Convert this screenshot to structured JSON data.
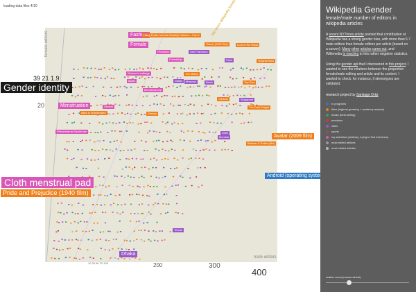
{
  "status": "loading data files 4/10",
  "axes": {
    "y_title": "female editors",
    "x_title": "male editors",
    "x_ticks": {
      "t400": "400",
      "t300": "300",
      "t200": "200",
      "small": "10 30 50 70 100"
    },
    "y_ticks": {
      "t20": "20",
      "top": "39 21 1.9"
    }
  },
  "annotation": "200 times Wikipedia female/male average",
  "labels": [
    {
      "id": "fashion",
      "text": "Fashion",
      "size": "md",
      "color": "#d957b8"
    },
    {
      "id": "harry-potter",
      "text": "Harry Potter and the Deathly Hallows – Part 1",
      "size": "sm",
      "color": "#f07f1b"
    },
    {
      "id": "female",
      "text": "Female",
      "size": "md",
      "color": "#d957b8"
    },
    {
      "id": "titanic",
      "text": "Titanic (1997 film)",
      "size": "sm",
      "color": "#f07f1b"
    },
    {
      "id": "ring",
      "text": "Lord of the Rings",
      "size": "sm",
      "color": "#f07f1b"
    },
    {
      "id": "feminism",
      "text": "Feminism",
      "size": "sm",
      "color": "#d957b8"
    },
    {
      "id": "sanfrancisco",
      "text": "San Francisco",
      "size": "sm",
      "color": "#9a59c9"
    },
    {
      "id": "friendship",
      "text": "Friendship",
      "size": "sm",
      "color": "#d957b8"
    },
    {
      "id": "paris",
      "text": "Paris",
      "size": "sm",
      "color": "#9a59c9"
    },
    {
      "id": "original",
      "text": "Original films",
      "size": "sm",
      "color": "#f07f1b"
    },
    {
      "id": "suffrage",
      "text": "Women's suffrage",
      "size": "sm",
      "color": "#d957b8"
    },
    {
      "id": "matrix",
      "text": "The Matrix",
      "size": "sm",
      "color": "#f07f1b"
    },
    {
      "id": "ballet",
      "text": "Ballet",
      "size": "sm",
      "color": "#d957b8"
    },
    {
      "id": "dallas",
      "text": "Dallas",
      "size": "sm",
      "color": "#9a59c9"
    },
    {
      "id": "moscow",
      "text": "Moscow",
      "size": "sm",
      "color": "#9a59c9"
    },
    {
      "id": "berlin",
      "text": "Berlin",
      "size": "sm",
      "color": "#9a59c9"
    },
    {
      "id": "topgun",
      "text": "Top Gun",
      "size": "sm",
      "color": "#f07f1b"
    },
    {
      "id": "menstrual-cup",
      "text": "Menstrual cup",
      "size": "sm",
      "color": "#d957b8"
    },
    {
      "id": "gender-identity",
      "text": "Gender identity",
      "size": "lg",
      "color": "#1a1a1a"
    },
    {
      "id": "cartoon",
      "text": "Cartoon",
      "size": "sm",
      "color": "#f07f1b"
    },
    {
      "id": "singapore",
      "text": "Singapore",
      "size": "sm",
      "color": "#9a59c9"
    },
    {
      "id": "darkknight",
      "text": "The Dark Knight",
      "size": "sm",
      "color": "#f07f1b"
    },
    {
      "id": "menstruation",
      "text": "Menstruation",
      "size": "md",
      "color": "#d957b8"
    },
    {
      "id": "feminism2",
      "text": "Sexism",
      "size": "sm",
      "color": "#d957b8"
    },
    {
      "id": "alice",
      "text": "Alice in Wonderland",
      "size": "sm",
      "color": "#f07f1b"
    },
    {
      "id": "grease",
      "text": "Grease",
      "size": "sm",
      "color": "#f07f1b"
    },
    {
      "id": "avatar",
      "text": "Avatar (2009 film)",
      "size": "md",
      "color": "#f07f1b"
    },
    {
      "id": "premenstrual",
      "text": "Premenstrual Syndrome",
      "size": "sm",
      "color": "#d957b8"
    },
    {
      "id": "delhi",
      "text": "Delhi",
      "size": "sm",
      "color": "#9a59c9"
    },
    {
      "id": "mumbai",
      "text": "Mumbai",
      "size": "sm",
      "color": "#9a59c9"
    },
    {
      "id": "batman",
      "text": "Batman & Robin (film)",
      "size": "sm",
      "color": "#f07f1b"
    },
    {
      "id": "android",
      "text": "Android (operating system)",
      "size": "md",
      "color": "#2f7ac3"
    },
    {
      "id": "cloth-pad",
      "text": "Cloth menstrual pad",
      "size": "lg",
      "color": "#d957b8"
    },
    {
      "id": "pride",
      "text": "Pride and Prejudice (1940 film)",
      "size": "mdlg",
      "color": "#f07f1b"
    },
    {
      "id": "tehran",
      "text": "Tehran",
      "size": "sm",
      "color": "#9a59c9"
    },
    {
      "id": "dhaka",
      "text": "Dhaka",
      "size": "md",
      "color": "#9a59c9"
    }
  ],
  "sidebar": {
    "title": "Wikipedia Gender",
    "subtitle": "female/male number of editors in wikipedia articles",
    "p1": {
      "before_link1": "A ",
      "link1": "recent NYTimes article",
      "after_link1": " pointed that contribution at Wikipedia has a strong gender bias, with more than 6.7 male editors than female editors per article (based on a survey). ",
      "link2": "Many",
      "mid1": " ",
      "link3": "other",
      "mid2": " ",
      "link4": "articles",
      "mid3": " ",
      "link5": "came out",
      "mid4": ", and Wikimedia ",
      "link6": "is reacting",
      "after": " to this rather negative statistics."
    },
    "p2": {
      "before": "Using the ",
      "link1": "gender api",
      "mid": " that I discovered in ",
      "link2": "this project",
      "after": ", I wanted to see the relations between the proportion female/male editing and article and its content. I wanted to check, for instance, if stereotypes are validated."
    },
    "credit": {
      "before": "research project by ",
      "link": "Santiago Ortiz"
    },
    "legend": [
      {
        "label": "tv programs",
        "color": "#2f7ac3"
      },
      {
        "label": "films (highest grossing + academy awards)",
        "color": "#f07f1b"
      },
      {
        "label": "books (best selling)",
        "color": "#3aa34a"
      },
      {
        "label": "emotions",
        "color": "#d9342b"
      },
      {
        "label": "cities",
        "color": "#9a59c9"
      },
      {
        "label": "sports",
        "color": "#8b5a3c"
      },
      {
        "label": "my selection (arbitrary, trying to find extremes)",
        "color": "#d957b8"
      },
      {
        "label": "most edited articles",
        "color": "#9a9a9a"
      },
      {
        "label": "most visited articles",
        "color": "#b8b8b8"
      }
    ],
    "zoom_label": "scatter zoom (mouse wheel)",
    "zoom_level": 0.28
  },
  "palette": {
    "plot_bg": "#e8e6d9",
    "sidebar_bg": "#5d5d5d",
    "films": "#f07f1b",
    "cities": "#9a59c9",
    "selection": "#d957b8",
    "tv": "#2f7ac3"
  }
}
